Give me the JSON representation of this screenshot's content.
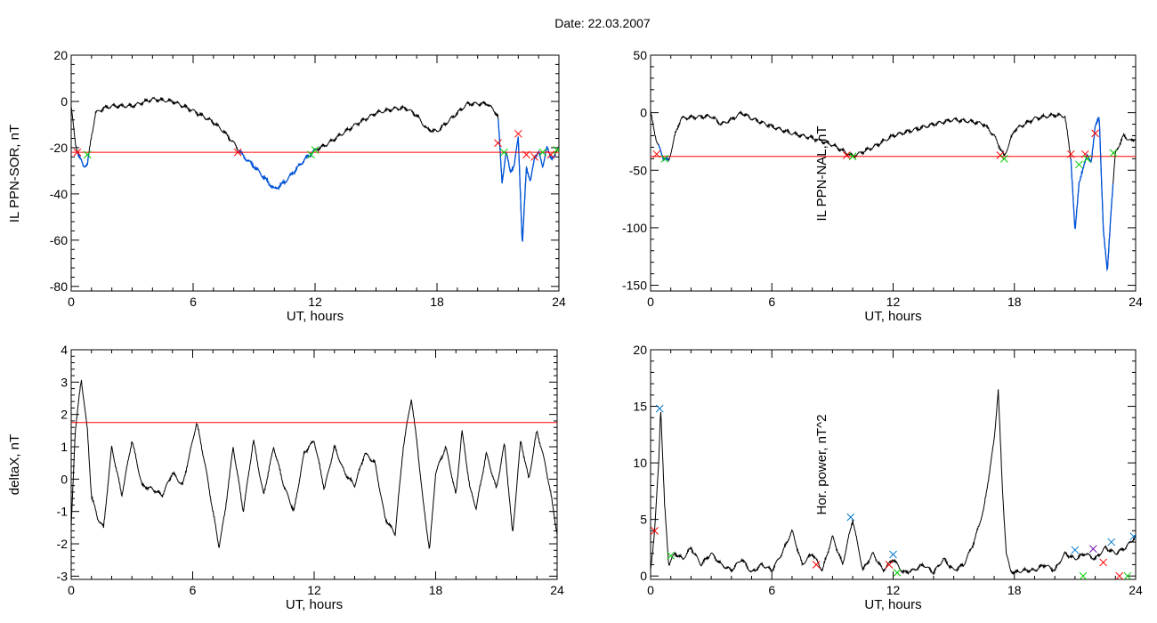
{
  "title": "Date:  22.03.2007",
  "colors": {
    "curve": "#000000",
    "threshold": "#ff0000",
    "highlight": "#0055dd",
    "marker_red": "#ff0000",
    "marker_green": "#00cc00",
    "marker_blue": "#0077cc",
    "marker_purple": "#6600aa"
  },
  "chart_data": [
    {
      "type": "line",
      "xlabel": "UT, hours",
      "ylabel": "IL PPN-SOR, nT",
      "xlim": [
        0,
        24
      ],
      "ylim": [
        -82,
        20
      ],
      "xticks": [
        0,
        6,
        12,
        18,
        24
      ],
      "yticks": [
        20,
        0,
        -20,
        -40,
        -60,
        -80
      ],
      "threshold": -22,
      "x": [
        0,
        0.2,
        0.4,
        0.6,
        0.8,
        1.0,
        1.2,
        1.6,
        2,
        3,
        4,
        5,
        6,
        7,
        7.5,
        8,
        8.5,
        9,
        9.5,
        10,
        10.5,
        11,
        11.5,
        12,
        12.5,
        13,
        14,
        15,
        16,
        16.5,
        17,
        17.5,
        18,
        19,
        19.5,
        20,
        20.5,
        21,
        21.2,
        21.4,
        21.6,
        21.8,
        22,
        22.2,
        22.4,
        22.6,
        22.8,
        23,
        23.2,
        23.4,
        23.6,
        23.8,
        24
      ],
      "values": [
        -2,
        -18,
        -24,
        -28,
        -27,
        -15,
        -5,
        -3,
        -2,
        -2,
        1,
        0,
        -4,
        -9,
        -13,
        -18,
        -24,
        -28,
        -33,
        -38,
        -35,
        -30,
        -25,
        -21,
        -19,
        -16,
        -10,
        -5,
        -3,
        -3,
        -6,
        -12,
        -13,
        -5,
        -1,
        -1,
        -1,
        -6,
        -35,
        -22,
        -30,
        -28,
        -15,
        -63,
        -28,
        -35,
        -24,
        -22,
        -28,
        -20,
        -24,
        -24,
        -19
      ],
      "highlight_spans": [
        [
          0.3,
          0.9
        ],
        [
          8.2,
          12
        ],
        [
          21,
          23.8
        ]
      ],
      "markers": [
        {
          "x": 0.3,
          "y": -22,
          "color": "red"
        },
        {
          "x": 0.8,
          "y": -23,
          "color": "green"
        },
        {
          "x": 8.2,
          "y": -22,
          "color": "red"
        },
        {
          "x": 11.8,
          "y": -23,
          "color": "green"
        },
        {
          "x": 12.0,
          "y": -21,
          "color": "green"
        },
        {
          "x": 21.0,
          "y": -18,
          "color": "red"
        },
        {
          "x": 21.3,
          "y": -22,
          "color": "green"
        },
        {
          "x": 22.0,
          "y": -14,
          "color": "red"
        },
        {
          "x": 22.4,
          "y": -23,
          "color": "red"
        },
        {
          "x": 22.8,
          "y": -24,
          "color": "red"
        },
        {
          "x": 23.2,
          "y": -22,
          "color": "green"
        },
        {
          "x": 23.6,
          "y": -23,
          "color": "red"
        },
        {
          "x": 23.9,
          "y": -21,
          "color": "green"
        }
      ]
    },
    {
      "type": "line",
      "xlabel": "UT, hours",
      "ylabel": "IL PPN-NAL, nT",
      "xlim": [
        0,
        24
      ],
      "ylim": [
        -155,
        50
      ],
      "xticks": [
        0,
        6,
        12,
        18,
        24
      ],
      "yticks": [
        50,
        0,
        -50,
        -100,
        -150
      ],
      "threshold": -38,
      "x": [
        0,
        0.3,
        0.6,
        0.9,
        1.2,
        1.5,
        2,
        3,
        3.5,
        4,
        4.5,
        5,
        6,
        7,
        8,
        9,
        9.5,
        10,
        10.5,
        11,
        12,
        13,
        14,
        15,
        16,
        16.5,
        17,
        17.5,
        18,
        19,
        20,
        20.5,
        20.8,
        21,
        21.2,
        21.4,
        21.6,
        21.8,
        22,
        22.2,
        22.4,
        22.6,
        22.8,
        23,
        23.4,
        23.8,
        24
      ],
      "values": [
        0,
        -25,
        -38,
        -42,
        -20,
        -5,
        -4,
        -3,
        -10,
        -6,
        0,
        -5,
        -12,
        -18,
        -22,
        -28,
        -33,
        -38,
        -34,
        -30,
        -20,
        -15,
        -10,
        -6,
        -8,
        -10,
        -20,
        -38,
        -15,
        -5,
        -2,
        -3,
        -40,
        -105,
        -60,
        -50,
        -35,
        -45,
        -10,
        -5,
        -100,
        -140,
        -80,
        -35,
        -20,
        -25,
        -22
      ],
      "highlight_spans": [
        [
          0.4,
          0.9
        ],
        [
          20.8,
          22.9
        ]
      ],
      "markers": [
        {
          "x": 0.3,
          "y": -36,
          "color": "red"
        },
        {
          "x": 0.7,
          "y": -40,
          "color": "green"
        },
        {
          "x": 9.7,
          "y": -37,
          "color": "red"
        },
        {
          "x": 10.0,
          "y": -38,
          "color": "green"
        },
        {
          "x": 17.3,
          "y": -37,
          "color": "red"
        },
        {
          "x": 17.5,
          "y": -40,
          "color": "green"
        },
        {
          "x": 20.8,
          "y": -36,
          "color": "red"
        },
        {
          "x": 21.2,
          "y": -45,
          "color": "green"
        },
        {
          "x": 21.5,
          "y": -36,
          "color": "red"
        },
        {
          "x": 21.6,
          "y": -40,
          "color": "green"
        },
        {
          "x": 22.0,
          "y": -18,
          "color": "red"
        },
        {
          "x": 22.9,
          "y": -35,
          "color": "green"
        }
      ]
    },
    {
      "type": "line",
      "xlabel": "UT, hours",
      "ylabel": "deltaX, nT",
      "xlim": [
        0,
        24
      ],
      "ylim": [
        -3.1,
        4
      ],
      "xticks": [
        0,
        6,
        12,
        18,
        24
      ],
      "yticks": [
        4,
        3,
        2,
        1,
        0,
        -1,
        -2,
        -3
      ],
      "threshold": 1.75,
      "x": [
        0,
        0.2,
        0.5,
        0.8,
        1.0,
        1.3,
        1.6,
        2.0,
        2.5,
        3.0,
        3.5,
        4.0,
        4.5,
        5.0,
        5.5,
        6.2,
        6.6,
        7.0,
        7.3,
        7.6,
        8.0,
        8.5,
        9.0,
        9.5,
        10.0,
        10.5,
        11.0,
        11.5,
        12.0,
        12.5,
        13.0,
        13.5,
        14.0,
        14.5,
        15.0,
        15.5,
        16.0,
        16.4,
        16.8,
        17.1,
        17.4,
        17.7,
        18.0,
        18.5,
        19.0,
        19.3,
        19.7,
        20.0,
        20.5,
        21.0,
        21.4,
        21.8,
        22.2,
        22.6,
        23.0,
        23.4,
        23.7,
        24.0
      ],
      "values": [
        -1.5,
        1.5,
        3.1,
        1.5,
        -0.5,
        -1.2,
        -1.5,
        1.0,
        -0.5,
        1.2,
        -0.2,
        -0.3,
        -0.5,
        0.2,
        -0.2,
        1.75,
        0.5,
        -1.0,
        -2.1,
        -1.0,
        1.0,
        -1.0,
        1.2,
        -0.5,
        1.0,
        -0.2,
        -1.0,
        0.8,
        1.2,
        -0.3,
        1.0,
        0.2,
        -0.2,
        0.8,
        0.5,
        -1.2,
        -1.7,
        1.0,
        2.5,
        1.0,
        -0.8,
        -2.2,
        0.2,
        1.0,
        -0.5,
        1.5,
        -0.3,
        -0.9,
        0.8,
        -0.3,
        1.1,
        -1.7,
        1.2,
        0.0,
        1.5,
        0.5,
        -0.5,
        -1.7
      ]
    },
    {
      "type": "line",
      "xlabel": "UT, hours",
      "ylabel": "Hor. power, nT^2",
      "xlim": [
        0,
        24
      ],
      "ylim": [
        -0.3,
        20
      ],
      "xticks": [
        0,
        6,
        12,
        18,
        24
      ],
      "yticks": [
        20,
        15,
        10,
        5,
        0
      ],
      "x": [
        0,
        0.2,
        0.4,
        0.5,
        0.7,
        0.9,
        1.2,
        1.6,
        2,
        2.5,
        3,
        3.5,
        4,
        4.5,
        5,
        5.5,
        6,
        6.5,
        7,
        7.5,
        8,
        8.5,
        9,
        9.5,
        10,
        10.5,
        11,
        11.5,
        12,
        12.5,
        13,
        13.5,
        14,
        14.5,
        15,
        15.5,
        16,
        16.5,
        17,
        17.2,
        17.4,
        17.6,
        17.8,
        18,
        18.5,
        19,
        19.5,
        20,
        20.5,
        21,
        21.5,
        22,
        22.5,
        23,
        23.5,
        24
      ],
      "values": [
        0.5,
        4.0,
        10.0,
        15.0,
        6.0,
        1.0,
        2.0,
        1.5,
        2.5,
        1.0,
        2.0,
        1.0,
        0.5,
        1.5,
        0.3,
        1.0,
        0.5,
        2.0,
        4.0,
        1.0,
        2.0,
        0.5,
        3.5,
        1.0,
        5.0,
        0.5,
        2.0,
        0.5,
        1.5,
        0.3,
        0.5,
        1.0,
        0.3,
        1.5,
        0.5,
        1.0,
        3.0,
        6.0,
        12.0,
        16.5,
        8.0,
        2.0,
        0.5,
        0.3,
        0.5,
        0.5,
        1.0,
        0.5,
        2.0,
        1.5,
        2.0,
        1.5,
        2.5,
        2.0,
        2.5,
        3.5
      ],
      "markers": [
        {
          "x": 0.2,
          "y": 4.0,
          "color": "red"
        },
        {
          "x": 0.45,
          "y": 14.8,
          "color": "blue"
        },
        {
          "x": 1.0,
          "y": 1.8,
          "color": "green"
        },
        {
          "x": 8.2,
          "y": 1.0,
          "color": "red"
        },
        {
          "x": 9.9,
          "y": 5.2,
          "color": "blue"
        },
        {
          "x": 11.8,
          "y": 1.0,
          "color": "red"
        },
        {
          "x": 12.0,
          "y": 1.9,
          "color": "blue"
        },
        {
          "x": 12.2,
          "y": 0.3,
          "color": "green"
        },
        {
          "x": 21.0,
          "y": 2.3,
          "color": "blue"
        },
        {
          "x": 21.4,
          "y": 0.0,
          "color": "green"
        },
        {
          "x": 21.9,
          "y": 2.4,
          "color": "purple"
        },
        {
          "x": 22.4,
          "y": 1.2,
          "color": "red"
        },
        {
          "x": 22.8,
          "y": 3.0,
          "color": "blue"
        },
        {
          "x": 23.2,
          "y": 0.0,
          "color": "red"
        },
        {
          "x": 23.6,
          "y": 0.0,
          "color": "green"
        },
        {
          "x": 23.9,
          "y": 3.5,
          "color": "blue"
        }
      ]
    }
  ]
}
